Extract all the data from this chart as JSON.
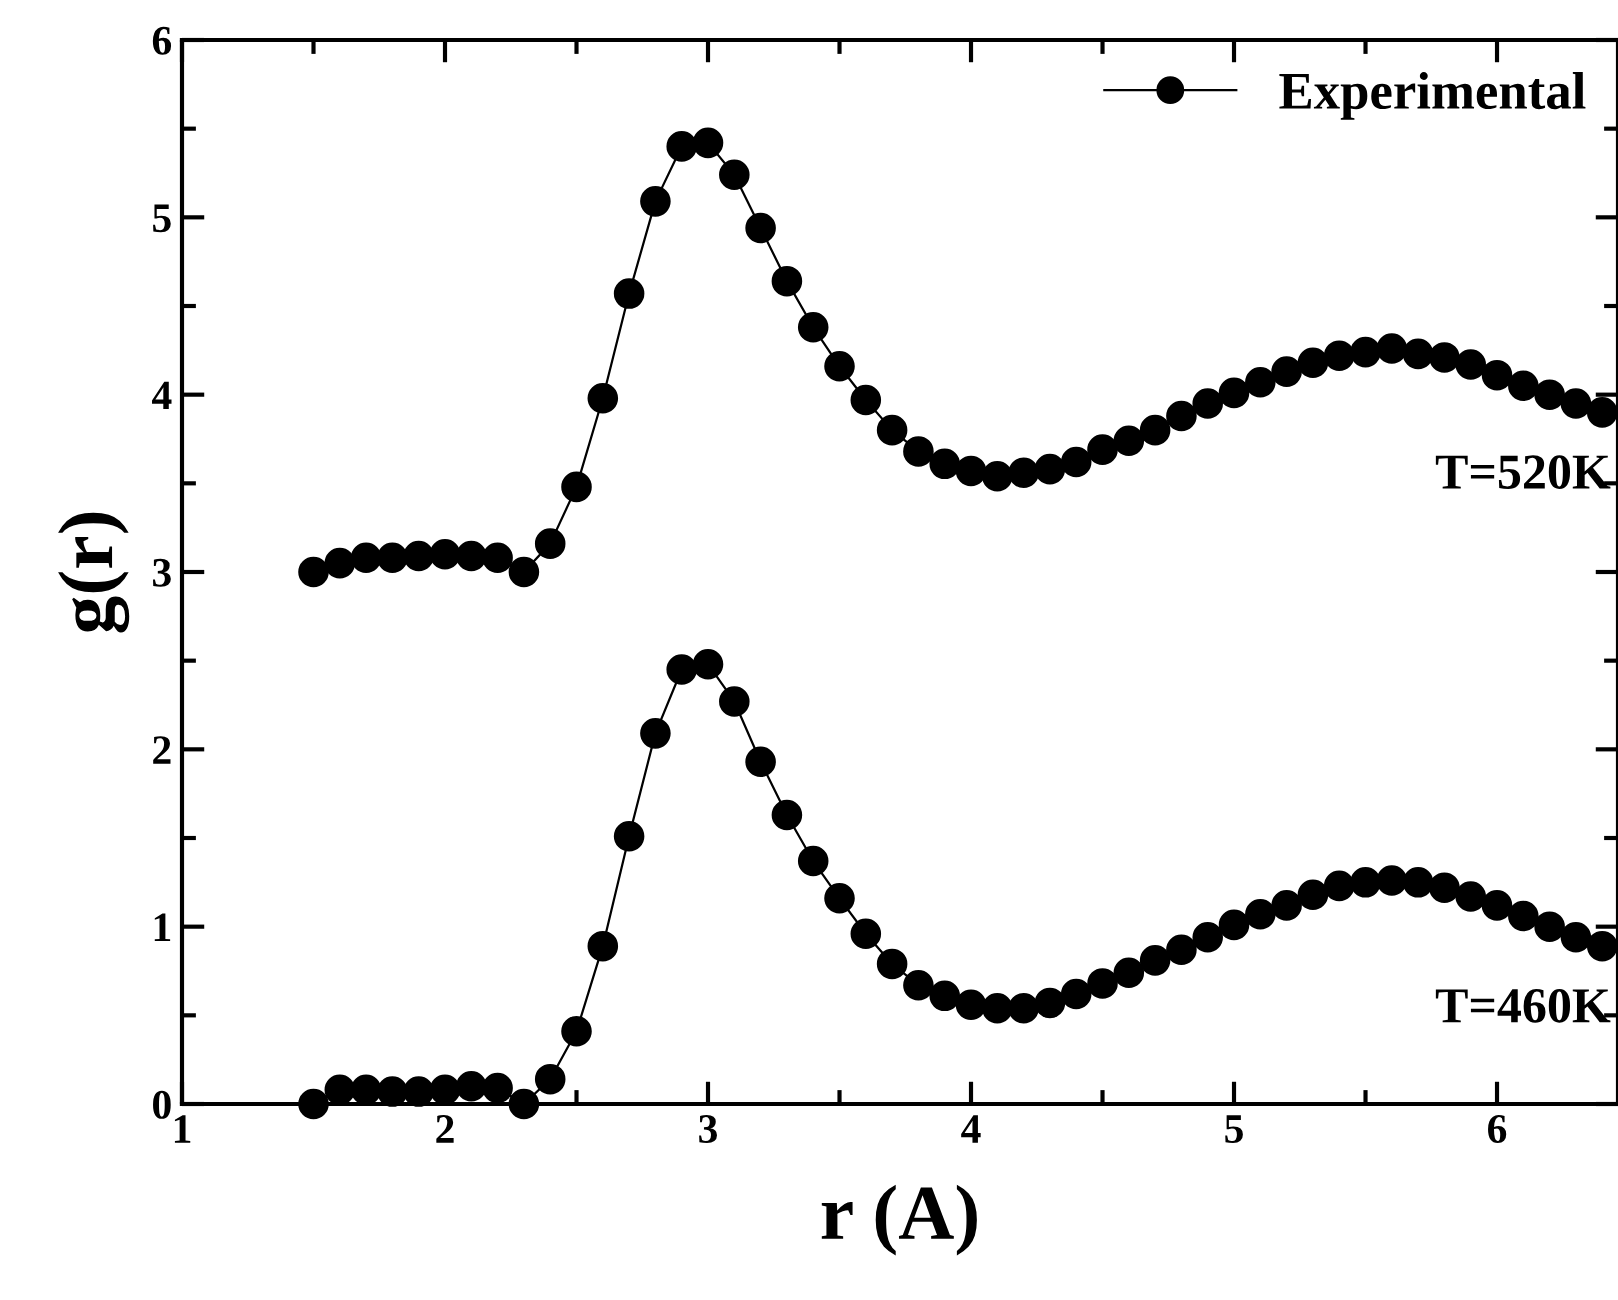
{
  "chart_data": {
    "type": "line",
    "xlabel": "r (A)",
    "ylabel": "g(r)",
    "x": [
      1.5,
      1.6,
      1.7,
      1.8,
      1.9,
      2.0,
      2.1,
      2.2,
      2.3,
      2.4,
      2.5,
      2.6,
      2.7,
      2.8,
      2.9,
      3.0,
      3.1,
      3.2,
      3.3,
      3.4,
      3.5,
      3.6,
      3.7,
      3.8,
      3.9,
      4.0,
      4.1,
      4.2,
      4.3,
      4.4,
      4.5,
      4.6,
      4.7,
      4.8,
      4.9,
      5.0,
      5.1,
      5.2,
      5.3,
      5.4,
      5.5,
      5.6,
      5.7,
      5.8,
      5.9,
      6.0,
      6.1,
      6.2,
      6.3,
      6.4
    ],
    "series": [
      {
        "name": "Experimental",
        "color": "#000000",
        "values": [
          3.0,
          3.05,
          3.08,
          3.08,
          3.09,
          3.1,
          3.09,
          3.08,
          3.0,
          3.16,
          3.48,
          3.98,
          4.57,
          5.09,
          5.4,
          5.42,
          5.24,
          4.94,
          4.64,
          4.38,
          4.16,
          3.97,
          3.8,
          3.68,
          3.61,
          3.57,
          3.54,
          3.56,
          3.58,
          3.62,
          3.69,
          3.74,
          3.8,
          3.88,
          3.95,
          4.01,
          4.07,
          4.13,
          4.18,
          4.22,
          4.24,
          4.26,
          4.23,
          4.21,
          4.17,
          4.11,
          4.05,
          4.0,
          3.95,
          3.9
        ]
      },
      {
        "color": "#000000",
        "values": [
          0.0,
          0.08,
          0.08,
          0.07,
          0.07,
          0.08,
          0.1,
          0.09,
          0.0,
          0.14,
          0.41,
          0.89,
          1.51,
          2.09,
          2.45,
          2.48,
          2.27,
          1.93,
          1.63,
          1.37,
          1.16,
          0.96,
          0.79,
          0.67,
          0.61,
          0.56,
          0.54,
          0.54,
          0.57,
          0.62,
          0.68,
          0.74,
          0.81,
          0.87,
          0.94,
          1.01,
          1.07,
          1.12,
          1.18,
          1.23,
          1.25,
          1.26,
          1.25,
          1.22,
          1.17,
          1.12,
          1.06,
          1.0,
          0.94,
          0.89
        ]
      }
    ],
    "annotations": [
      "T=520K",
      "T=460K"
    ],
    "xlim": [
      1,
      6.46
    ],
    "xticks": [
      1,
      2,
      3,
      4,
      5,
      6
    ],
    "ylim": [
      0,
      6
    ],
    "yticks": [
      0,
      1,
      2,
      3,
      4,
      5,
      6
    ],
    "marker": "circle",
    "line_style": "solid",
    "legend": "top right",
    "grid": false
  }
}
